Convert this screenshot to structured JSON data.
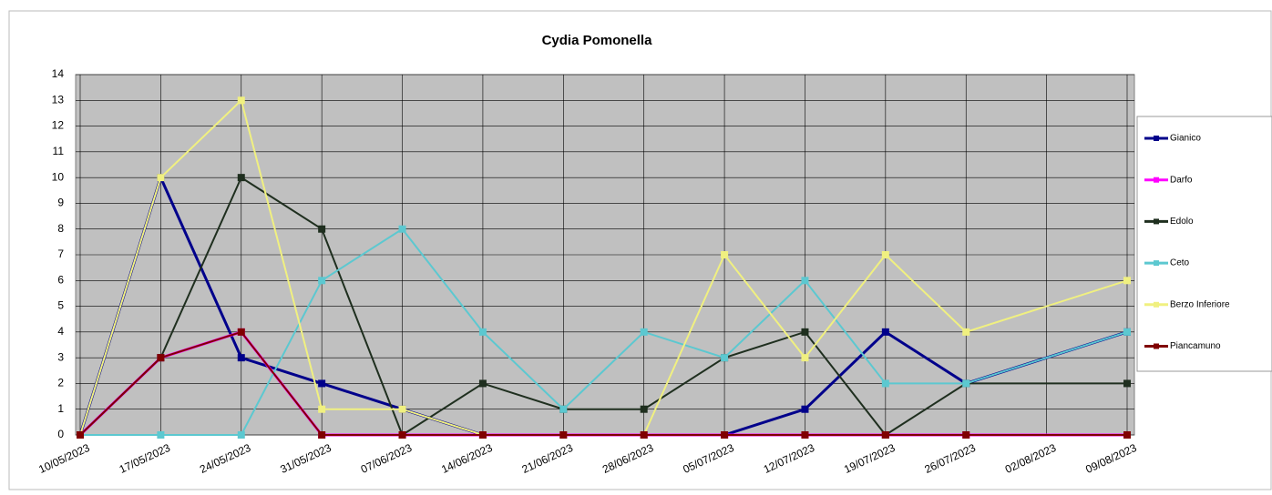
{
  "chart_data": {
    "type": "line",
    "title": "Cydia Pomonella",
    "categories": [
      "10/05/2023",
      "17/05/2023",
      "24/05/2023",
      "31/05/2023",
      "07/06/2023",
      "14/06/2023",
      "21/06/2023",
      "28/06/2023",
      "05/07/2023",
      "12/07/2023",
      "19/07/2023",
      "26/07/2023",
      "02/08/2023",
      "09/08/2023"
    ],
    "series": [
      {
        "name": "Gianico",
        "color": "#00008b",
        "values": [
          0,
          10,
          3,
          2,
          1,
          0,
          0,
          0,
          0,
          1,
          4,
          2,
          null,
          4
        ]
      },
      {
        "name": "Darfo",
        "color": "#ff00ff",
        "values": [
          0,
          3,
          4,
          0,
          0,
          0,
          0,
          0,
          0,
          0,
          0,
          0,
          null,
          0
        ]
      },
      {
        "name": "Edolo",
        "color": "#1f2f1f",
        "values": [
          0,
          3,
          10,
          8,
          0,
          2,
          1,
          1,
          3,
          4,
          0,
          2,
          null,
          2
        ]
      },
      {
        "name": "Ceto",
        "color": "#5cc8d0",
        "values": [
          0,
          0,
          0,
          6,
          8,
          4,
          1,
          4,
          3,
          6,
          2,
          2,
          null,
          4
        ]
      },
      {
        "name": "Berzo Inferiore",
        "color": "#f0f080",
        "values": [
          0,
          10,
          13,
          1,
          1,
          0,
          0,
          0,
          7,
          3,
          7,
          4,
          null,
          6
        ]
      },
      {
        "name": "Piancamuno",
        "color": "#800000",
        "values": [
          0,
          3,
          4,
          0,
          0,
          0,
          0,
          0,
          0,
          0,
          0,
          0,
          null,
          0
        ]
      }
    ],
    "ylim": [
      0,
      14
    ],
    "yticks": [
      0,
      1,
      2,
      3,
      4,
      5,
      6,
      7,
      8,
      9,
      10,
      11,
      12,
      13,
      14
    ],
    "grid": true,
    "connect_gaps": true,
    "legend": "right"
  }
}
